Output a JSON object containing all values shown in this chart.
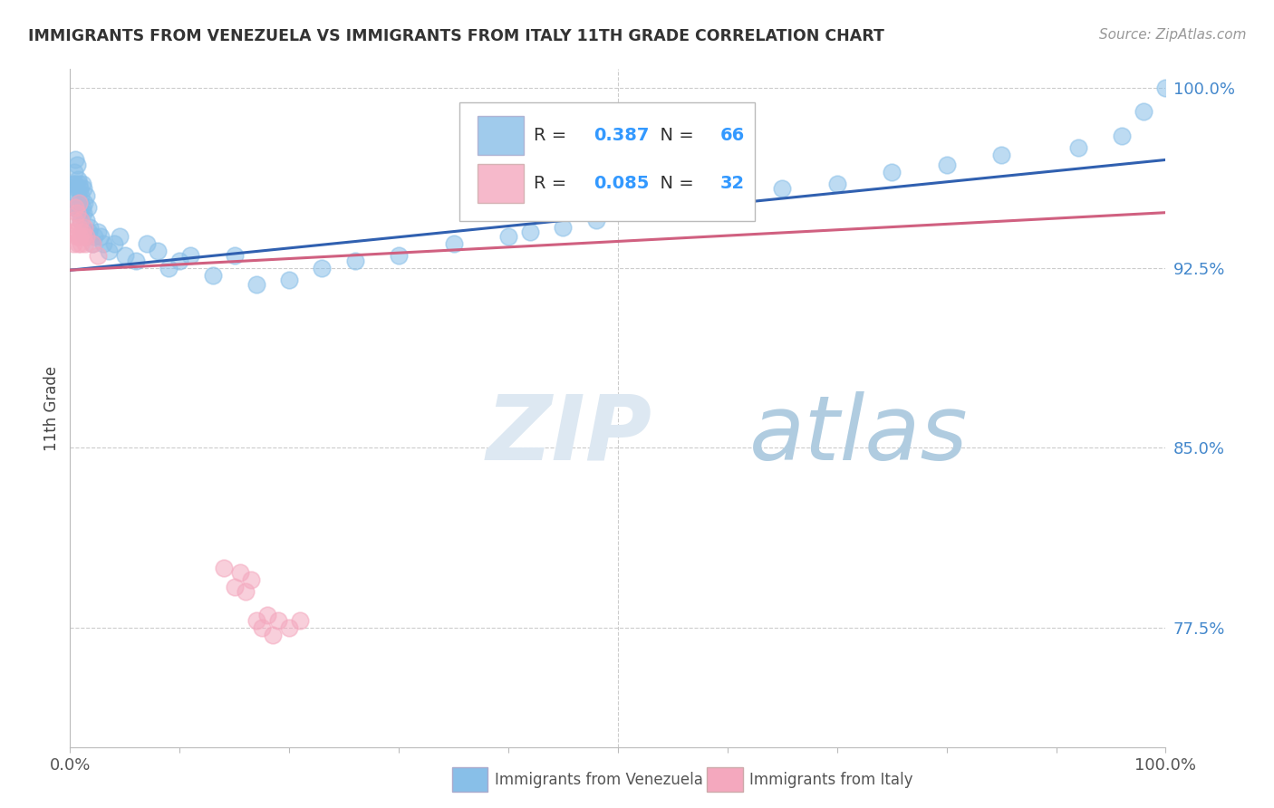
{
  "title": "IMMIGRANTS FROM VENEZUELA VS IMMIGRANTS FROM ITALY 11TH GRADE CORRELATION CHART",
  "source": "Source: ZipAtlas.com",
  "ylabel": "11th Grade",
  "legend_label1": "Immigrants from Venezuela",
  "legend_label2": "Immigrants from Italy",
  "R1": 0.387,
  "N1": 66,
  "R2": 0.085,
  "N2": 32,
  "color1": "#88bfe8",
  "color2": "#f4a8be",
  "trendline1_color": "#3060b0",
  "trendline2_color": "#d06080",
  "xlim": [
    0.0,
    1.0
  ],
  "ylim": [
    0.725,
    1.008
  ],
  "yticks": [
    0.775,
    0.85,
    0.925,
    1.0
  ],
  "ytick_labels": [
    "77.5%",
    "85.0%",
    "92.5%",
    "100.0%"
  ],
  "background_color": "#ffffff",
  "grid_color": "#cccccc",
  "watermark_zip_color": "#d8e4f0",
  "watermark_atlas_color": "#a0bcd8",
  "blue_scatter_x": [
    0.002,
    0.003,
    0.004,
    0.004,
    0.005,
    0.005,
    0.006,
    0.006,
    0.007,
    0.007,
    0.008,
    0.008,
    0.009,
    0.009,
    0.01,
    0.01,
    0.011,
    0.011,
    0.012,
    0.012,
    0.013,
    0.013,
    0.014,
    0.015,
    0.015,
    0.016,
    0.017,
    0.018,
    0.02,
    0.022,
    0.025,
    0.028,
    0.03,
    0.035,
    0.04,
    0.045,
    0.05,
    0.06,
    0.07,
    0.08,
    0.09,
    0.1,
    0.11,
    0.13,
    0.15,
    0.17,
    0.2,
    0.23,
    0.26,
    0.3,
    0.35,
    0.4,
    0.42,
    0.45,
    0.48,
    0.52,
    0.6,
    0.65,
    0.7,
    0.75,
    0.8,
    0.85,
    0.92,
    0.96,
    0.98,
    1.0
  ],
  "blue_scatter_y": [
    0.955,
    0.96,
    0.95,
    0.965,
    0.96,
    0.97,
    0.958,
    0.968,
    0.955,
    0.962,
    0.95,
    0.96,
    0.948,
    0.958,
    0.945,
    0.955,
    0.95,
    0.96,
    0.948,
    0.958,
    0.952,
    0.94,
    0.938,
    0.945,
    0.955,
    0.95,
    0.94,
    0.942,
    0.935,
    0.938,
    0.94,
    0.938,
    0.935,
    0.932,
    0.935,
    0.938,
    0.93,
    0.928,
    0.935,
    0.932,
    0.925,
    0.928,
    0.93,
    0.922,
    0.93,
    0.918,
    0.92,
    0.925,
    0.928,
    0.93,
    0.935,
    0.938,
    0.94,
    0.942,
    0.945,
    0.95,
    0.955,
    0.958,
    0.96,
    0.965,
    0.968,
    0.972,
    0.975,
    0.98,
    0.99,
    1.0
  ],
  "pink_scatter_x": [
    0.002,
    0.003,
    0.004,
    0.005,
    0.005,
    0.006,
    0.006,
    0.007,
    0.008,
    0.008,
    0.009,
    0.01,
    0.01,
    0.011,
    0.012,
    0.013,
    0.014,
    0.015,
    0.02,
    0.025,
    0.14,
    0.15,
    0.155,
    0.16,
    0.165,
    0.17,
    0.175,
    0.18,
    0.185,
    0.19,
    0.2,
    0.21
  ],
  "pink_scatter_y": [
    0.94,
    0.935,
    0.945,
    0.94,
    0.95,
    0.938,
    0.948,
    0.935,
    0.942,
    0.952,
    0.938,
    0.935,
    0.945,
    0.94,
    0.938,
    0.942,
    0.935,
    0.938,
    0.935,
    0.93,
    0.8,
    0.792,
    0.798,
    0.79,
    0.795,
    0.778,
    0.775,
    0.78,
    0.772,
    0.778,
    0.775,
    0.778
  ],
  "trendline1_x0": 0.0,
  "trendline1_y0": 0.924,
  "trendline1_x1": 1.0,
  "trendline1_y1": 0.97,
  "trendline2_x0": 0.0,
  "trendline2_y0": 0.924,
  "trendline2_x1": 1.0,
  "trendline2_y1": 0.948
}
